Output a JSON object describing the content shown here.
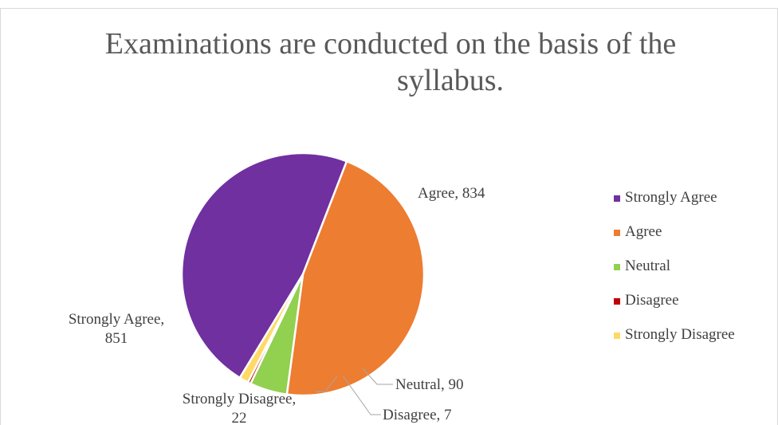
{
  "chart_data": {
    "type": "pie",
    "title": "Examinations are conducted on the basis of the syllabus.",
    "title_lines": [
      "Examinations are conducted on the basis of the",
      "syllabus."
    ],
    "slices": [
      {
        "label": "Strongly Agree",
        "value": 851,
        "color": "#7030a0"
      },
      {
        "label": "Agree",
        "value": 834,
        "color": "#ed7d31"
      },
      {
        "label": "Neutral",
        "value": 90,
        "color": "#92d050"
      },
      {
        "label": "Disagree",
        "value": 7,
        "color": "#c00000"
      },
      {
        "label": "Strongly Disagree",
        "value": 22,
        "color": "#ffd966"
      }
    ],
    "data_labels": [
      {
        "lines": [
          "Agree, 834"
        ]
      },
      {
        "lines": [
          "Neutral, 90"
        ]
      },
      {
        "lines": [
          "Disagree, 7"
        ]
      },
      {
        "lines": [
          "Strongly Disagree,",
          "22"
        ]
      },
      {
        "lines": [
          "Strongly Agree,",
          "851"
        ]
      }
    ],
    "legend": {
      "position": "right",
      "items": [
        "Strongly Agree",
        "Agree",
        "Neutral",
        "Disagree",
        "Strongly Disagree"
      ]
    }
  }
}
